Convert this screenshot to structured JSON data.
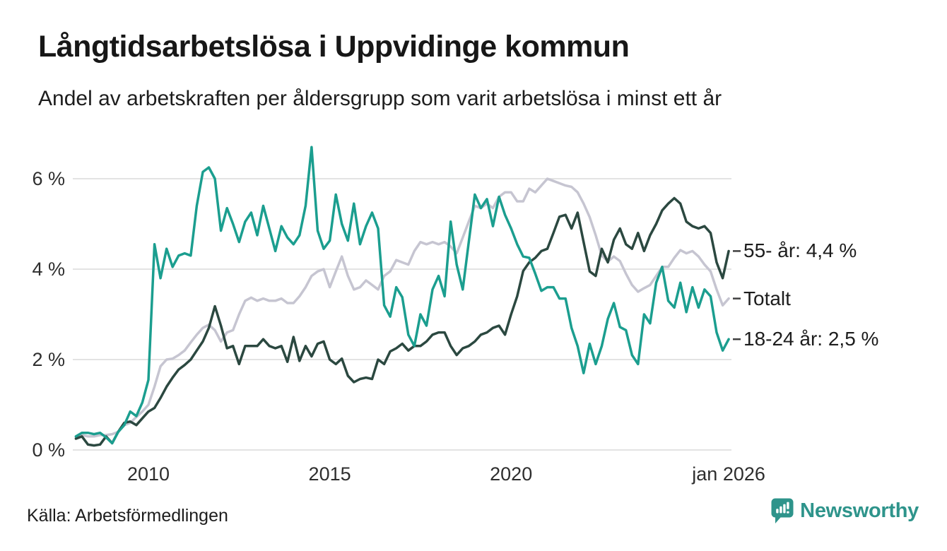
{
  "header": {
    "title": "Långtidsarbetslösa i Uppvidinge kommun",
    "subtitle": "Andel av arbetskraften per åldersgrupp som varit arbetslösa i minst ett år"
  },
  "footer": {
    "source": "Källa: Arbetsförmedlingen",
    "logo_text": "Newsworthy",
    "logo_color": "#2e948b",
    "logo_icon": "newsworthy-speech-bubble-bar-chart-icon"
  },
  "chart_data": {
    "type": "line",
    "title": "Långtidsarbetslösa i Uppvidinge kommun",
    "x_start": 2008.0,
    "x_step_years": 0.1666667,
    "xlim": [
      2007.9,
      2026.1
    ],
    "ylim": [
      0,
      6.9
    ],
    "grid": "horizontal",
    "grid_color": "#e3e3e3",
    "tick_dash_color": "#404040",
    "x_ticks": [
      {
        "value": 2010,
        "label": "2010"
      },
      {
        "value": 2015,
        "label": "2015"
      },
      {
        "value": 2020,
        "label": "2020"
      },
      {
        "value": 2026,
        "label": "jan 2026"
      }
    ],
    "y_ticks": [
      {
        "value": 0,
        "label": "0 %"
      },
      {
        "value": 2,
        "label": "2 %"
      },
      {
        "value": 4,
        "label": "4 %"
      },
      {
        "value": 6,
        "label": "6 %"
      }
    ],
    "legend_position": "right-end-labels",
    "series": [
      {
        "name": "Totalt",
        "end_label": "Totalt",
        "end_value": 3.35,
        "color": "#c6c5d1",
        "values": [
          0.28,
          0.33,
          0.3,
          0.3,
          0.33,
          0.33,
          0.35,
          0.4,
          0.55,
          0.6,
          0.73,
          0.85,
          1.0,
          1.4,
          1.85,
          2.0,
          2.02,
          2.1,
          2.2,
          2.38,
          2.55,
          2.7,
          2.77,
          2.65,
          2.4,
          2.6,
          2.65,
          3.0,
          3.3,
          3.37,
          3.3,
          3.35,
          3.3,
          3.3,
          3.35,
          3.25,
          3.25,
          3.4,
          3.6,
          3.85,
          3.95,
          4.0,
          3.6,
          3.95,
          4.28,
          3.85,
          3.55,
          3.6,
          3.75,
          3.65,
          3.55,
          3.85,
          3.95,
          4.2,
          4.15,
          4.1,
          4.4,
          4.6,
          4.55,
          4.6,
          4.55,
          4.6,
          4.5,
          4.35,
          4.7,
          5.05,
          5.4,
          5.35,
          5.45,
          5.35,
          5.6,
          5.7,
          5.7,
          5.5,
          5.5,
          5.78,
          5.7,
          5.85,
          6.0,
          5.95,
          5.9,
          5.85,
          5.82,
          5.7,
          5.45,
          5.15,
          4.75,
          4.3,
          4.17,
          4.28,
          4.18,
          3.9,
          3.65,
          3.5,
          3.58,
          3.65,
          3.85,
          4.05,
          4.05,
          4.25,
          4.42,
          4.35,
          4.4,
          4.28,
          4.1,
          3.95,
          3.55,
          3.2,
          3.35
        ]
      },
      {
        "name": "55- år",
        "end_label": "55- år: 4,4 %",
        "end_value": 4.4,
        "color": "#2b4840",
        "values": [
          0.25,
          0.3,
          0.12,
          0.1,
          0.12,
          0.3,
          0.15,
          0.4,
          0.6,
          0.63,
          0.55,
          0.7,
          0.85,
          0.93,
          1.15,
          1.4,
          1.6,
          1.78,
          1.88,
          2.0,
          2.2,
          2.4,
          2.7,
          3.18,
          2.75,
          2.25,
          2.3,
          1.9,
          2.3,
          2.3,
          2.3,
          2.45,
          2.3,
          2.25,
          2.3,
          1.95,
          2.5,
          1.97,
          2.3,
          2.07,
          2.35,
          2.4,
          2.0,
          1.9,
          2.02,
          1.64,
          1.5,
          1.57,
          1.6,
          1.57,
          2.0,
          1.9,
          2.18,
          2.25,
          2.35,
          2.2,
          2.3,
          2.3,
          2.4,
          2.55,
          2.6,
          2.6,
          2.3,
          2.1,
          2.25,
          2.3,
          2.4,
          2.55,
          2.6,
          2.7,
          2.75,
          2.55,
          3.0,
          3.4,
          3.96,
          4.15,
          4.25,
          4.4,
          4.45,
          4.8,
          5.16,
          5.2,
          4.9,
          5.25,
          4.6,
          3.95,
          3.85,
          4.45,
          4.15,
          4.65,
          4.9,
          4.55,
          4.45,
          4.8,
          4.4,
          4.75,
          5.0,
          5.3,
          5.45,
          5.57,
          5.45,
          5.05,
          4.95,
          4.9,
          4.95,
          4.8,
          4.15,
          3.8,
          4.4
        ]
      },
      {
        "name": "18-24 år",
        "end_label": "18-24 år: 2,5 %",
        "end_value": 2.5,
        "color": "#1b9e8f",
        "values": [
          0.3,
          0.38,
          0.38,
          0.35,
          0.38,
          0.28,
          0.15,
          0.4,
          0.55,
          0.85,
          0.75,
          1.05,
          1.55,
          4.55,
          3.8,
          4.45,
          4.05,
          4.3,
          4.35,
          4.3,
          5.4,
          6.15,
          6.25,
          6.0,
          4.85,
          5.35,
          5.0,
          4.6,
          5.05,
          5.25,
          4.75,
          5.4,
          4.9,
          4.4,
          4.95,
          4.7,
          4.55,
          4.75,
          5.4,
          6.7,
          4.85,
          4.45,
          4.63,
          5.65,
          5.0,
          4.63,
          5.45,
          4.55,
          4.95,
          5.25,
          4.9,
          3.2,
          2.95,
          3.6,
          3.38,
          2.55,
          2.3,
          3.0,
          2.75,
          3.55,
          3.85,
          3.4,
          5.05,
          4.1,
          3.55,
          4.6,
          5.65,
          5.35,
          5.55,
          4.95,
          5.6,
          5.2,
          4.9,
          4.55,
          4.28,
          4.25,
          3.9,
          3.52,
          3.6,
          3.6,
          3.35,
          3.35,
          2.7,
          2.3,
          1.7,
          2.35,
          1.9,
          2.3,
          2.9,
          3.25,
          2.72,
          2.65,
          2.1,
          1.9,
          3.0,
          2.8,
          3.7,
          4.05,
          3.3,
          3.15,
          3.7,
          3.05,
          3.6,
          3.15,
          3.55,
          3.4,
          2.6,
          2.2,
          2.45
        ]
      }
    ]
  }
}
